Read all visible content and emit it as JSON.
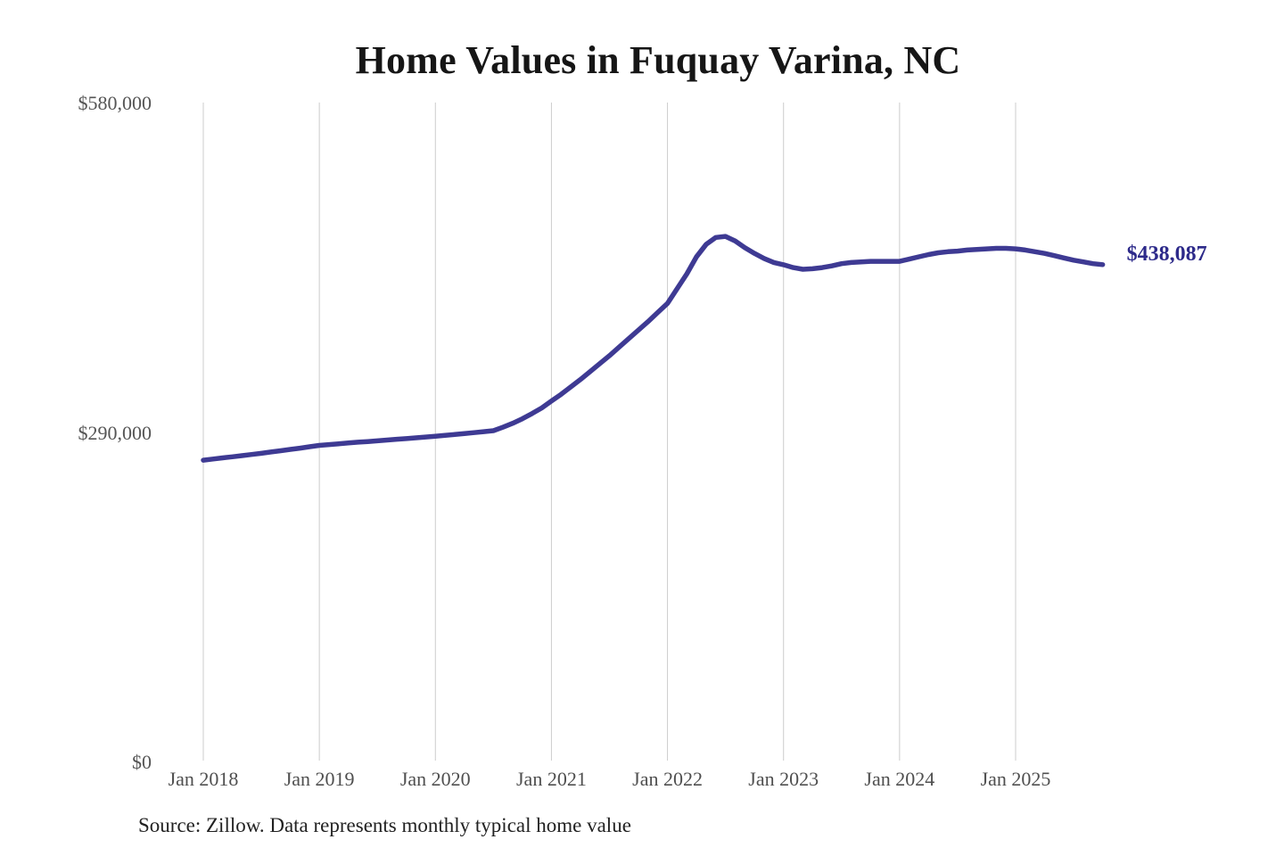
{
  "page": {
    "background": "#ffffff"
  },
  "chart_data": {
    "type": "line",
    "title": "Home Values in Fuquay Varina, NC",
    "source": "Source: Zillow. Data represents monthly typical home value",
    "series_name": "Typical home value ($)",
    "frequency": "monthly",
    "start_month": "2018-01",
    "end_month": "2025-10",
    "current_value": 438087,
    "end_label": "$438,087",
    "unit": "USD",
    "ylim": [
      0,
      580000
    ],
    "y_ticks": [
      {
        "label": "$580,000",
        "value": 580000
      },
      {
        "label": "$290,000",
        "value": 290000
      },
      {
        "label": "$0",
        "value": 0
      }
    ],
    "x_tick_labels": [
      "Jan 2018",
      "Jan 2019",
      "Jan 2020",
      "Jan 2021",
      "Jan 2022",
      "Jan 2023",
      "Jan 2024",
      "Jan 2025"
    ],
    "grid": "vertical-only",
    "legend": "none",
    "line_color": "#3e3a93",
    "end_label_color": "#2d2a8a",
    "grid_color": "#cccccc",
    "title_color": "#161616",
    "axis_label_color": "#555555",
    "source_color": "#222222",
    "values": [
      266000,
      267000,
      268000,
      269000,
      270000,
      271000,
      272000,
      273200,
      274300,
      275500,
      276600,
      277800,
      279000,
      279700,
      280400,
      281100,
      281800,
      282400,
      283000,
      283700,
      284400,
      285000,
      285700,
      286400,
      287000,
      287800,
      288600,
      289400,
      290200,
      291100,
      292000,
      295000,
      298500,
      302500,
      307000,
      312000,
      318000,
      324000,
      330500,
      337000,
      344000,
      351000,
      358000,
      365500,
      373000,
      380500,
      388000,
      396000,
      404000,
      417000,
      430000,
      445000,
      456000,
      462000,
      463000,
      459000,
      453000,
      448000,
      443500,
      440000,
      438000,
      435500,
      434000,
      434500,
      435500,
      437000,
      439000,
      440000,
      440500,
      441000,
      441000,
      441000,
      441000,
      443000,
      445000,
      447000,
      448500,
      449500,
      450000,
      451000,
      451500,
      452000,
      452500,
      452500,
      452000,
      451000,
      449500,
      448000,
      446000,
      444000,
      442000,
      440500,
      439000,
      438087
    ]
  }
}
